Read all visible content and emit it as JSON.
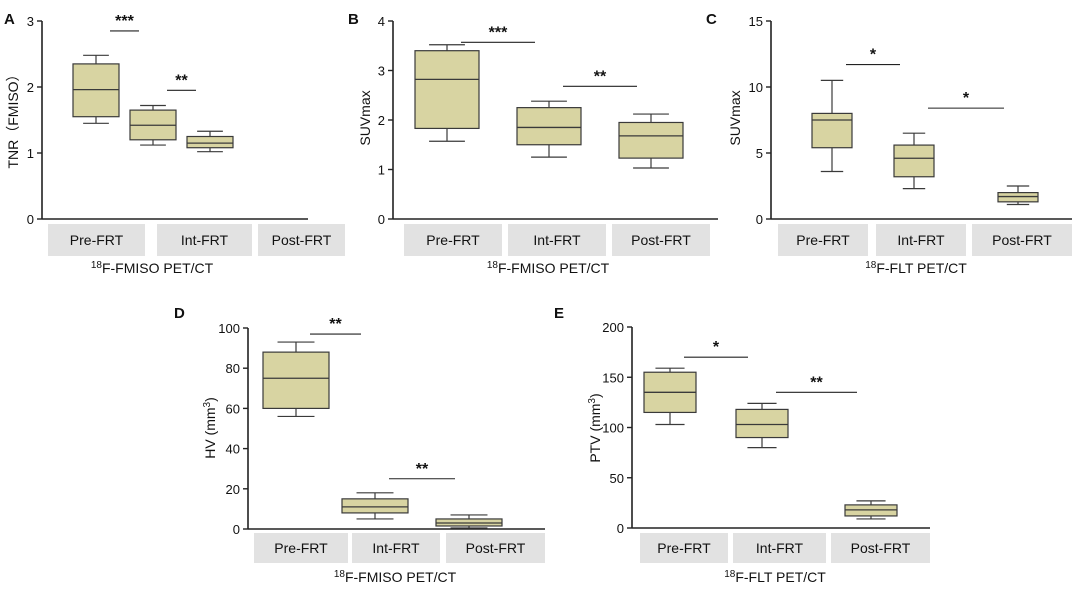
{
  "chart_data": [
    {
      "type": "box",
      "panel": "A",
      "ylabel": "TNR（FMISO）",
      "xlabel": {
        "sup": "18",
        "text": "F-FMISO PET/CT"
      },
      "categories": [
        "Pre-FRT",
        "Int-FRT",
        "Post-FRT"
      ],
      "ylim": [
        0,
        3
      ],
      "yticks": [
        0,
        1,
        2,
        3
      ],
      "boxes": [
        {
          "min": 1.45,
          "q1": 1.55,
          "median": 1.96,
          "q3": 2.35,
          "max": 2.48
        },
        {
          "min": 1.12,
          "q1": 1.2,
          "median": 1.42,
          "q3": 1.65,
          "max": 1.72
        },
        {
          "min": 1.02,
          "q1": 1.08,
          "median": 1.15,
          "q3": 1.25,
          "max": 1.33
        }
      ],
      "significance": [
        {
          "from": 0,
          "to": 1,
          "label": "***",
          "y": 2.85
        },
        {
          "from": 1,
          "to": 2,
          "label": "**",
          "y": 1.95
        }
      ]
    },
    {
      "type": "box",
      "panel": "B",
      "ylabel": "SUVmax",
      "xlabel": {
        "sup": "18",
        "text": "F-FMISO PET/CT"
      },
      "categories": [
        "Pre-FRT",
        "Int-FRT",
        "Post-FRT"
      ],
      "ylim": [
        0,
        4
      ],
      "yticks": [
        0,
        1,
        2,
        3,
        4
      ],
      "boxes": [
        {
          "min": 1.57,
          "q1": 1.83,
          "median": 2.82,
          "q3": 3.4,
          "max": 3.52
        },
        {
          "min": 1.25,
          "q1": 1.5,
          "median": 1.85,
          "q3": 2.25,
          "max": 2.38
        },
        {
          "min": 1.03,
          "q1": 1.23,
          "median": 1.68,
          "q3": 1.95,
          "max": 2.12
        }
      ],
      "significance": [
        {
          "from": 0,
          "to": 1,
          "label": "***",
          "y": 3.57
        },
        {
          "from": 1,
          "to": 2,
          "label": "**",
          "y": 2.68
        }
      ]
    },
    {
      "type": "box",
      "panel": "C",
      "ylabel": "SUVmax",
      "xlabel": {
        "sup": "18",
        "text": "F-FLT PET/CT"
      },
      "categories": [
        "Pre-FRT",
        "Int-FRT",
        "Post-FRT"
      ],
      "ylim": [
        0,
        15
      ],
      "yticks": [
        0,
        5,
        10,
        15
      ],
      "boxes": [
        {
          "min": 3.6,
          "q1": 5.4,
          "median": 7.5,
          "q3": 8.0,
          "max": 10.5
        },
        {
          "min": 2.3,
          "q1": 3.2,
          "median": 4.6,
          "q3": 5.6,
          "max": 6.5
        },
        {
          "min": 1.1,
          "q1": 1.3,
          "median": 1.7,
          "q3": 2.0,
          "max": 2.5
        }
      ],
      "significance": [
        {
          "from": 0,
          "to": 1,
          "label": "*",
          "y": 11.7
        },
        {
          "from": 1,
          "to": 2,
          "label": "*",
          "y": 8.4
        }
      ]
    },
    {
      "type": "box",
      "panel": "D",
      "ylabel": {
        "text": "HV (mm",
        "sup": "3",
        "close": ")"
      },
      "xlabel": {
        "sup": "18",
        "text": "F-FMISO PET/CT"
      },
      "categories": [
        "Pre-FRT",
        "Int-FRT",
        "Post-FRT"
      ],
      "ylim": [
        0,
        100
      ],
      "yticks": [
        0,
        20,
        40,
        60,
        80,
        100
      ],
      "boxes": [
        {
          "min": 56,
          "q1": 60,
          "median": 75,
          "q3": 88,
          "max": 93
        },
        {
          "min": 5,
          "q1": 8,
          "median": 11,
          "q3": 15,
          "max": 18
        },
        {
          "min": 0.5,
          "q1": 1.5,
          "median": 3,
          "q3": 5,
          "max": 7
        }
      ],
      "significance": [
        {
          "from": 0,
          "to": 1,
          "label": "**",
          "y": 97
        },
        {
          "from": 1,
          "to": 2,
          "label": "**",
          "y": 25
        }
      ]
    },
    {
      "type": "box",
      "panel": "E",
      "ylabel": {
        "text": "PTV (mm",
        "sup": "3",
        "close": ")"
      },
      "xlabel": {
        "sup": "18",
        "text": "F-FLT PET/CT"
      },
      "categories": [
        "Pre-FRT",
        "Int-FRT",
        "Post-FRT"
      ],
      "ylim": [
        0,
        200
      ],
      "yticks": [
        0,
        50,
        100,
        150,
        200
      ],
      "boxes": [
        {
          "min": 103,
          "q1": 115,
          "median": 135,
          "q3": 155,
          "max": 159
        },
        {
          "min": 80,
          "q1": 90,
          "median": 103,
          "q3": 118,
          "max": 124
        },
        {
          "min": 9,
          "q1": 12,
          "median": 18,
          "q3": 23,
          "max": 27
        }
      ],
      "significance": [
        {
          "from": 0,
          "to": 1,
          "label": "*",
          "y": 170
        },
        {
          "from": 1,
          "to": 2,
          "label": "**",
          "y": 135
        }
      ]
    }
  ],
  "colors": {
    "box_fill": "#d8d4a2",
    "box_stroke": "#3a3a3a",
    "axis": "#222222",
    "category_band": "#e2e2e2"
  }
}
